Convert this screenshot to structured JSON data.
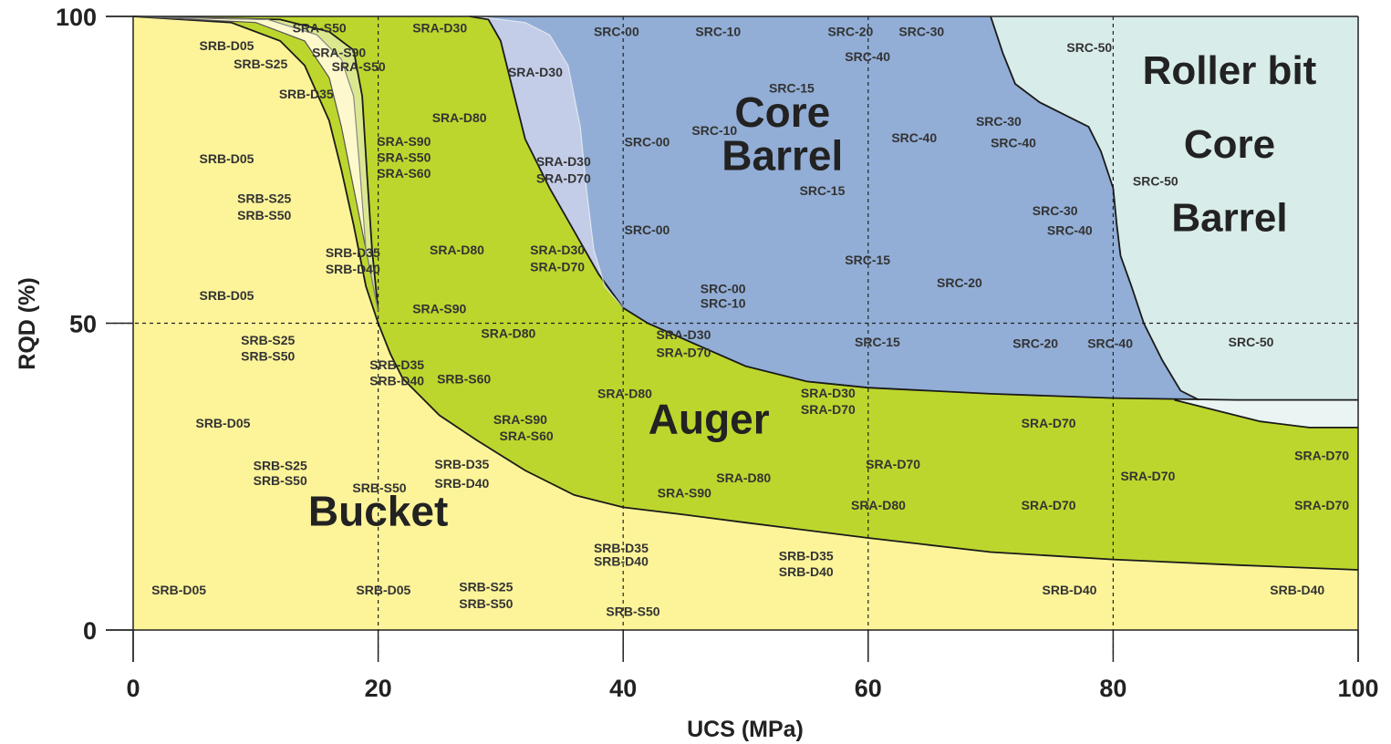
{
  "chart_data": {
    "type": "area",
    "xlabel": "UCS (MPa)",
    "ylabel": "RQD (%)",
    "xlim": [
      0,
      100
    ],
    "ylim": [
      0,
      100
    ],
    "xticks": [
      "0",
      "20",
      "40",
      "60",
      "80",
      "100"
    ],
    "yticks": [
      "0",
      "50",
      "100"
    ],
    "grid_x": [
      20,
      40,
      60,
      80
    ],
    "grid_y": [
      50
    ],
    "colors": {
      "bucket": "#fdf49a",
      "bucket_light": "#fdf9cc",
      "bucket_green": "#dce890",
      "auger": "#bdd62d",
      "core_barrel_light": "#c3cde8",
      "core_barrel": "#92aed6",
      "roller_bit": "#d8ecea",
      "roller_bit_light": "#e9f4f3"
    },
    "regions": [
      {
        "label": "Bucket",
        "x": 20,
        "y": 17,
        "size": 46
      },
      {
        "label": "Auger",
        "x": 47,
        "y": 32,
        "size": 46
      },
      {
        "label": "Core",
        "x": 53,
        "y": 82,
        "size": 46
      },
      {
        "label": "Barrel",
        "x": 53,
        "y": 75,
        "size": 46
      },
      {
        "label": "Roller bit",
        "x": 89.5,
        "y": 89,
        "size": 44
      },
      {
        "label": "Core",
        "x": 89.5,
        "y": 77,
        "size": 44
      },
      {
        "label": "Barrel",
        "x": 89.5,
        "y": 65,
        "size": 44
      }
    ],
    "boundaries": {
      "bucket_upper": [
        [
          0,
          100
        ],
        [
          8,
          99
        ],
        [
          12,
          96
        ],
        [
          14,
          92
        ],
        [
          16,
          83
        ],
        [
          17,
          75
        ],
        [
          18,
          66
        ],
        [
          19,
          56
        ],
        [
          20,
          50
        ],
        [
          21,
          45
        ],
        [
          22,
          41
        ],
        [
          25,
          35
        ],
        [
          28,
          31
        ],
        [
          32,
          26
        ],
        [
          36,
          22
        ],
        [
          40,
          20
        ],
        [
          45,
          18.8
        ],
        [
          50,
          17.5
        ],
        [
          60,
          15
        ],
        [
          70,
          12.7
        ],
        [
          80,
          11.5
        ],
        [
          90,
          10.6
        ],
        [
          100,
          9.8
        ]
      ],
      "bucket_light_left": [
        [
          0,
          100
        ],
        [
          10,
          99
        ],
        [
          14,
          96
        ],
        [
          16,
          90
        ],
        [
          17,
          82
        ],
        [
          18,
          72
        ],
        [
          19,
          62
        ],
        [
          20,
          52
        ]
      ],
      "bucket_light_right": [
        [
          0,
          100
        ],
        [
          11,
          99.5
        ],
        [
          15,
          97
        ],
        [
          17,
          93
        ],
        [
          18,
          87
        ],
        [
          18.5,
          75
        ],
        [
          19,
          62
        ],
        [
          20,
          52
        ]
      ],
      "bucket_green_left": [
        [
          0,
          100
        ],
        [
          12,
          99.5
        ],
        [
          16,
          97.5
        ],
        [
          18,
          94.5
        ],
        [
          18.7,
          87
        ],
        [
          19.1,
          74
        ],
        [
          19.5,
          62
        ],
        [
          20,
          52
        ]
      ],
      "auger_upper": [
        [
          27.5,
          100
        ],
        [
          29,
          99.5
        ],
        [
          30,
          96
        ],
        [
          31,
          88
        ],
        [
          32,
          80
        ],
        [
          34,
          72
        ],
        [
          36,
          65
        ],
        [
          38,
          58
        ],
        [
          40,
          52.5
        ],
        [
          42,
          50
        ],
        [
          46,
          46.5
        ],
        [
          50,
          43
        ],
        [
          55,
          40.5
        ],
        [
          60,
          39.5
        ],
        [
          70,
          38.5
        ],
        [
          80,
          37.8
        ],
        [
          90,
          37.5
        ],
        [
          100,
          37.5
        ]
      ],
      "core_light_right": [
        [
          28,
          100
        ],
        [
          32,
          99
        ],
        [
          34,
          97
        ],
        [
          35.5,
          92
        ],
        [
          36.5,
          82
        ],
        [
          37,
          72
        ],
        [
          37.6,
          62
        ],
        [
          38.5,
          56
        ],
        [
          40,
          52.5
        ]
      ],
      "core_upper": [
        [
          70,
          100
        ],
        [
          71,
          94
        ],
        [
          72,
          89
        ],
        [
          74,
          86
        ],
        [
          76,
          84
        ],
        [
          78,
          82
        ],
        [
          79,
          78
        ],
        [
          80,
          72
        ],
        [
          80.3,
          66
        ],
        [
          80.6,
          61
        ],
        [
          81.5,
          56
        ],
        [
          82.5,
          50
        ],
        [
          84,
          44
        ],
        [
          85.5,
          39
        ],
        [
          87,
          37.5
        ]
      ],
      "roller_lower": [
        [
          85,
          37.5
        ],
        [
          88,
          36
        ],
        [
          92,
          34
        ],
        [
          96,
          33
        ],
        [
          100,
          33
        ]
      ]
    },
    "annotations": [
      {
        "text": "SRA-S50",
        "x": 13,
        "y": 97.4
      },
      {
        "text": "SRA-D30",
        "x": 22.8,
        "y": 97.4
      },
      {
        "text": "SRB-D05",
        "x": 5.4,
        "y": 94.5
      },
      {
        "text": "SRA-S90",
        "x": 14.6,
        "y": 93.4
      },
      {
        "text": "SRB-S25",
        "x": 8.2,
        "y": 91.5
      },
      {
        "text": "SRA-S50",
        "x": 16.2,
        "y": 91.1
      },
      {
        "text": "SRA-D30",
        "x": 30.6,
        "y": 90.2
      },
      {
        "text": "SRB-D35",
        "x": 11.9,
        "y": 86.6
      },
      {
        "text": "SRA-D80",
        "x": 24.4,
        "y": 82.8
      },
      {
        "text": "SRA-S90",
        "x": 19.9,
        "y": 78.9
      },
      {
        "text": "SRA-S50",
        "x": 19.9,
        "y": 76.3
      },
      {
        "text": "SRA-S60",
        "x": 19.9,
        "y": 73.7
      },
      {
        "text": "SRB-D05",
        "x": 5.4,
        "y": 76.1
      },
      {
        "text": "SRA-D30",
        "x": 32.9,
        "y": 75.6
      },
      {
        "text": "SRA-D70",
        "x": 32.9,
        "y": 72.9
      },
      {
        "text": "SRB-S25",
        "x": 8.5,
        "y": 69.6
      },
      {
        "text": "SRB-S50",
        "x": 8.5,
        "y": 66.9
      },
      {
        "text": "SRB-D35",
        "x": 15.7,
        "y": 60.8
      },
      {
        "text": "SRB-D40",
        "x": 15.7,
        "y": 58.1
      },
      {
        "text": "SRA-D80",
        "x": 24.2,
        "y": 61.2
      },
      {
        "text": "SRA-D30",
        "x": 32.4,
        "y": 61.2
      },
      {
        "text": "SRA-D70",
        "x": 32.4,
        "y": 58.5
      },
      {
        "text": "SRB-D05",
        "x": 5.4,
        "y": 53.8
      },
      {
        "text": "SRA-S90",
        "x": 22.8,
        "y": 51.6
      },
      {
        "text": "SRA-D80",
        "x": 28.4,
        "y": 47.6
      },
      {
        "text": "SRB-S25",
        "x": 8.8,
        "y": 46.5
      },
      {
        "text": "SRB-S50",
        "x": 8.8,
        "y": 43.9
      },
      {
        "text": "SRB-D35",
        "x": 19.3,
        "y": 42.5
      },
      {
        "text": "SRB-D40",
        "x": 19.3,
        "y": 39.9
      },
      {
        "text": "SRB-S60",
        "x": 24.8,
        "y": 40.2
      },
      {
        "text": "SRA-D30",
        "x": 42.7,
        "y": 47.4
      },
      {
        "text": "SRA-D70",
        "x": 42.7,
        "y": 44.5
      },
      {
        "text": "SRA-D80",
        "x": 37.9,
        "y": 37.8
      },
      {
        "text": "SRB-D05",
        "x": 5.1,
        "y": 33
      },
      {
        "text": "SRA-S90",
        "x": 29.4,
        "y": 33.6
      },
      {
        "text": "SRA-S60",
        "x": 29.9,
        "y": 30.9
      },
      {
        "text": "SRB-S25",
        "x": 9.8,
        "y": 26.1
      },
      {
        "text": "SRB-S50",
        "x": 9.8,
        "y": 23.6
      },
      {
        "text": "SRB-D35",
        "x": 24.6,
        "y": 26.3
      },
      {
        "text": "SRB-D40",
        "x": 24.6,
        "y": 23.2
      },
      {
        "text": "SRB-S50",
        "x": 17.9,
        "y": 22.4
      },
      {
        "text": "SRA-S90",
        "x": 42.8,
        "y": 21.6
      },
      {
        "text": "SRA-D80",
        "x": 47.6,
        "y": 24.1
      },
      {
        "text": "SRA-D30",
        "x": 54.5,
        "y": 37.9
      },
      {
        "text": "SRA-D70",
        "x": 54.5,
        "y": 35.2
      },
      {
        "text": "SRA-D70",
        "x": 59.8,
        "y": 26.3
      },
      {
        "text": "SRA-D80",
        "x": 58.6,
        "y": 19.6
      },
      {
        "text": "SRA-D70",
        "x": 72.5,
        "y": 33
      },
      {
        "text": "SRA-D70",
        "x": 72.5,
        "y": 19.6
      },
      {
        "text": "SRA-D70",
        "x": 80.6,
        "y": 24.4
      },
      {
        "text": "SRA-D70",
        "x": 94.8,
        "y": 27.7
      },
      {
        "text": "SRA-D70",
        "x": 94.8,
        "y": 19.6
      },
      {
        "text": "SRB-D35",
        "x": 37.6,
        "y": 12.6
      },
      {
        "text": "SRB-D40",
        "x": 37.6,
        "y": 10.5
      },
      {
        "text": "SRB-D35",
        "x": 52.7,
        "y": 11.4
      },
      {
        "text": "SRB-D40",
        "x": 52.7,
        "y": 8.8
      },
      {
        "text": "SRB-S25",
        "x": 26.6,
        "y": 6.3
      },
      {
        "text": "SRB-S50",
        "x": 26.6,
        "y": 3.6
      },
      {
        "text": "SRB-S50",
        "x": 38.6,
        "y": 2.3
      },
      {
        "text": "SRB-D05",
        "x": 1.5,
        "y": 5.8
      },
      {
        "text": "SRB-D05",
        "x": 18.2,
        "y": 5.8
      },
      {
        "text": "SRB-D40",
        "x": 74.2,
        "y": 5.8
      },
      {
        "text": "SRB-D40",
        "x": 92.8,
        "y": 5.8
      },
      {
        "text": "SRC-00",
        "x": 37.6,
        "y": 96.8
      },
      {
        "text": "SRC-10",
        "x": 45.9,
        "y": 96.8
      },
      {
        "text": "SRC-20",
        "x": 56.7,
        "y": 96.8
      },
      {
        "text": "SRC-30",
        "x": 62.5,
        "y": 96.8
      },
      {
        "text": "SRC-40",
        "x": 58.1,
        "y": 92.7
      },
      {
        "text": "SRC-50",
        "x": 76.2,
        "y": 94.2
      },
      {
        "text": "SRC-15",
        "x": 51.9,
        "y": 87.6
      },
      {
        "text": "SRC-10",
        "x": 45.6,
        "y": 80.7
      },
      {
        "text": "SRC-00",
        "x": 40.1,
        "y": 78.8
      },
      {
        "text": "SRC-40",
        "x": 61.9,
        "y": 79.5
      },
      {
        "text": "SRC-30",
        "x": 68.8,
        "y": 82.2
      },
      {
        "text": "SRC-40",
        "x": 70,
        "y": 78.7
      },
      {
        "text": "SRC-50",
        "x": 81.6,
        "y": 72.4
      },
      {
        "text": "SRC-15",
        "x": 54.4,
        "y": 70.9
      },
      {
        "text": "SRC-30",
        "x": 73.4,
        "y": 67.6
      },
      {
        "text": "SRC-40",
        "x": 74.6,
        "y": 64.4
      },
      {
        "text": "SRC-00",
        "x": 40.1,
        "y": 64.5
      },
      {
        "text": "SRC-15",
        "x": 58.1,
        "y": 59.6
      },
      {
        "text": "SRC-20",
        "x": 65.6,
        "y": 55.9
      },
      {
        "text": "SRC-00",
        "x": 46.3,
        "y": 54.9
      },
      {
        "text": "SRC-10",
        "x": 46.3,
        "y": 52.5
      },
      {
        "text": "SRC-15",
        "x": 58.9,
        "y": 46.2
      },
      {
        "text": "SRC-20",
        "x": 71.8,
        "y": 46
      },
      {
        "text": "SRC-40",
        "x": 77.9,
        "y": 46
      },
      {
        "text": "SRC-50",
        "x": 89.4,
        "y": 46.2
      }
    ]
  }
}
